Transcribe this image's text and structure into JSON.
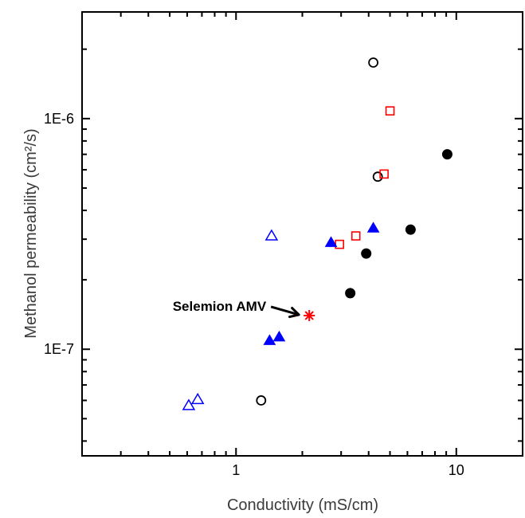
{
  "chart_data": {
    "type": "scatter",
    "xlabel": "Conductivity (mS/cm)",
    "ylabel": "Methanol permeability (cm²/s)",
    "x_scale": "log",
    "y_scale": "log",
    "xlim": [
      0.2,
      20
    ],
    "ylim": [
      3.45e-08,
      2.9e-06
    ],
    "x_ticks": [
      {
        "value": 1,
        "label": "1"
      },
      {
        "value": 10,
        "label": "10"
      }
    ],
    "y_ticks": [
      {
        "value": 1e-07,
        "label": "1E-7"
      },
      {
        "value": 1e-06,
        "label": "1E-6"
      }
    ],
    "grid": false,
    "series": [
      {
        "marker": "circle-open",
        "color": "#000000",
        "points": [
          [
            4.2,
            1.75e-06
          ],
          [
            4.4,
            5.6e-07
          ],
          [
            1.3,
            6e-08
          ]
        ]
      },
      {
        "marker": "circle-filled",
        "color": "#000000",
        "points": [
          [
            9.1,
            7e-07
          ],
          [
            6.2,
            3.3e-07
          ],
          [
            3.9,
            2.6e-07
          ],
          [
            3.3,
            1.75e-07
          ]
        ]
      },
      {
        "marker": "square-open",
        "color": "#ff0000",
        "points": [
          [
            5.0,
            1.08e-06
          ],
          [
            4.7,
            5.75e-07
          ],
          [
            3.5,
            3.1e-07
          ],
          [
            2.95,
            2.85e-07
          ]
        ]
      },
      {
        "marker": "triangle-filled",
        "color": "#0000ff",
        "points": [
          [
            4.2,
            3.35e-07
          ],
          [
            2.7,
            2.9e-07
          ],
          [
            1.57,
            1.13e-07
          ],
          [
            1.42,
            1.09e-07
          ]
        ]
      },
      {
        "marker": "triangle-open",
        "color": "#0000ff",
        "points": [
          [
            1.45,
            3.1e-07
          ],
          [
            0.67,
            6.05e-08
          ],
          [
            0.61,
            5.7e-08
          ]
        ]
      },
      {
        "marker": "asterisk",
        "color": "#ff0000",
        "points": [
          [
            2.15,
            1.4e-07
          ]
        ]
      }
    ],
    "annotations": [
      {
        "text": "Selemion AMV",
        "target": [
          2.15,
          1.4e-07
        ]
      }
    ]
  }
}
